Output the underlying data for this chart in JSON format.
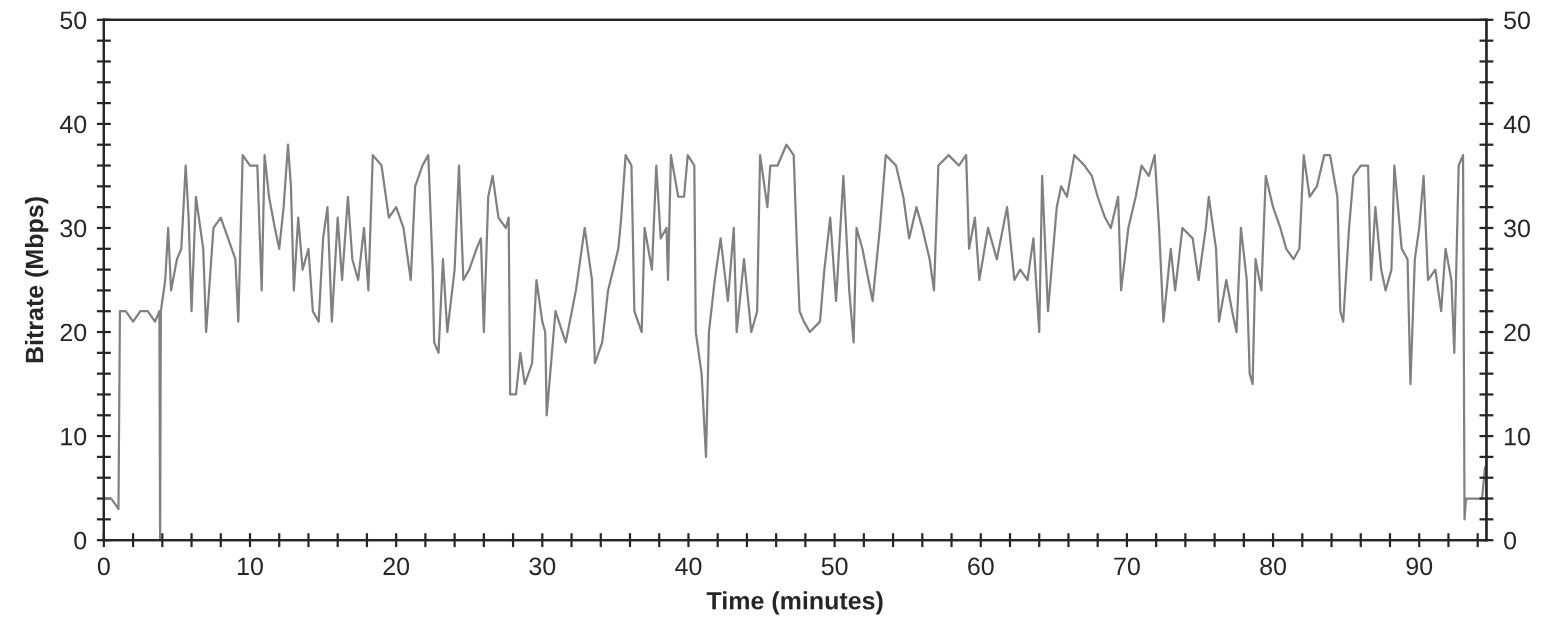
{
  "chart_data": {
    "type": "line",
    "xlabel": "Time (minutes)",
    "ylabel": "Bitrate (Mbps)",
    "series": [
      {
        "color": "#808080",
        "x": [
          0,
          0.5,
          1.0,
          1.1,
          1.5,
          2.0,
          2.5,
          3.0,
          3.5,
          3.8,
          3.85,
          3.9,
          4.2,
          4.4,
          4.6,
          5.0,
          5.3,
          5.6,
          5.8,
          6.0,
          6.3,
          6.8,
          7.0,
          7.5,
          8.0,
          8.5,
          9.0,
          9.2,
          9.5,
          10.0,
          10.5,
          10.8,
          11.0,
          11.3,
          11.7,
          12.0,
          12.3,
          12.6,
          12.8,
          13.0,
          13.3,
          13.6,
          14.0,
          14.3,
          14.7,
          15.0,
          15.3,
          15.6,
          16.0,
          16.3,
          16.7,
          17.0,
          17.4,
          17.8,
          18.1,
          18.4,
          19.0,
          19.5,
          20.0,
          20.5,
          21.0,
          21.3,
          21.8,
          22.2,
          22.5,
          22.6,
          22.9,
          23.2,
          23.5,
          24.0,
          24.3,
          24.6,
          25.0,
          25.5,
          25.8,
          26.0,
          26.3,
          26.6,
          27.0,
          27.5,
          27.7,
          27.8,
          28.2,
          28.5,
          28.8,
          29.3,
          29.6,
          30.0,
          30.2,
          30.3,
          30.9,
          31.6,
          32.3,
          32.9,
          33.4,
          33.6,
          34.1,
          34.5,
          35.2,
          35.4,
          35.7,
          36.1,
          36.3,
          36.8,
          37.0,
          37.5,
          37.8,
          38.1,
          38.5,
          38.6,
          38.8,
          39.3,
          39.7,
          39.95,
          40.4,
          40.5,
          40.9,
          41.2,
          41.4,
          41.8,
          42.2,
          42.7,
          43.1,
          43.3,
          43.8,
          44.3,
          44.7,
          44.9,
          45.4,
          45.6,
          46.1,
          46.7,
          47.2,
          47.4,
          47.6,
          47.9,
          48.3,
          49.0,
          49.3,
          49.7,
          50.1,
          50.6,
          51.0,
          51.3,
          51.5,
          51.9,
          52.6,
          53.1,
          53.5,
          54.2,
          54.7,
          55.1,
          55.6,
          56.0,
          56.5,
          56.8,
          57.1,
          57.8,
          58.5,
          59.0,
          59.2,
          59.6,
          59.9,
          60.5,
          61.1,
          61.8,
          62.3,
          62.7,
          63.2,
          63.6,
          64.0,
          64.2,
          64.6,
          64.9,
          65.2,
          65.5,
          65.9,
          66.4,
          67.1,
          67.6,
          68.0,
          68.5,
          68.9,
          69.4,
          69.6,
          70.1,
          70.6,
          71.0,
          71.5,
          71.9,
          72.2,
          72.5,
          73.0,
          73.3,
          73.8,
          74.5,
          74.9,
          75.4,
          75.6,
          76.1,
          76.3,
          76.8,
          77.2,
          77.5,
          77.8,
          78.2,
          78.4,
          78.6,
          78.8,
          79.2,
          79.5,
          80.0,
          80.5,
          80.9,
          81.4,
          81.8,
          82.1,
          82.5,
          83.0,
          83.5,
          83.9,
          84.4,
          84.6,
          84.8,
          85.2,
          85.5,
          86.0,
          86.5,
          86.7,
          87.0,
          87.4,
          87.7,
          88.1,
          88.3,
          88.8,
          89.2,
          89.4,
          89.7,
          90.0,
          90.3,
          90.6,
          91.1,
          91.5,
          91.8,
          92.2,
          92.4,
          92.7,
          93.0,
          93.1,
          93.2,
          94.3,
          94.5
        ],
        "values": [
          4,
          4,
          3,
          22,
          22,
          21,
          22,
          22,
          21,
          22,
          0,
          22,
          25,
          30,
          24,
          27,
          28,
          36,
          31,
          22,
          33,
          28,
          20,
          30,
          31,
          29,
          27,
          21,
          37,
          36,
          36,
          24,
          37,
          33,
          30,
          28,
          32,
          38,
          34,
          24,
          31,
          26,
          28,
          22,
          21,
          29,
          32,
          21,
          31,
          25,
          33,
          27,
          25,
          30,
          24,
          37,
          36,
          31,
          32,
          30,
          25,
          34,
          36,
          37,
          26,
          19,
          18,
          27,
          20,
          26,
          36,
          25,
          26,
          28,
          29,
          20,
          33,
          35,
          31,
          30,
          31,
          14,
          14,
          18,
          15,
          17,
          25,
          21,
          20,
          12,
          22,
          19,
          24,
          30,
          25,
          17,
          19,
          24,
          28,
          31,
          37,
          36,
          22,
          20,
          30,
          26,
          36,
          29,
          30,
          25,
          37,
          33,
          33,
          37,
          36,
          20,
          16,
          8,
          20,
          25,
          29,
          23,
          30,
          20,
          27,
          20,
          22,
          37,
          32,
          36,
          36,
          38,
          37,
          29,
          22,
          21,
          20,
          21,
          26,
          31,
          23,
          35,
          24,
          19,
          30,
          28,
          23,
          30,
          37,
          36,
          33,
          29,
          32,
          30,
          27,
          24,
          36,
          37,
          36,
          37,
          28,
          31,
          25,
          30,
          27,
          32,
          25,
          26,
          25,
          29,
          20,
          35,
          22,
          27,
          32,
          34,
          33,
          37,
          36,
          35,
          33,
          31,
          30,
          33,
          24,
          30,
          33,
          36,
          35,
          37,
          30,
          21,
          28,
          24,
          30,
          29,
          25,
          30,
          33,
          28,
          21,
          25,
          22,
          20,
          30,
          25,
          16,
          15,
          27,
          24,
          35,
          32,
          30,
          28,
          27,
          28,
          37,
          33,
          34,
          37,
          37,
          33,
          22,
          21,
          30,
          35,
          36,
          36,
          25,
          32,
          26,
          24,
          26,
          36,
          28,
          27,
          15,
          27,
          30,
          35,
          25,
          26,
          22,
          28,
          25,
          18,
          36,
          37,
          2,
          4,
          4,
          7
        ]
      }
    ],
    "xlim": [
      0,
      94.6
    ],
    "ylim": [
      0,
      50
    ],
    "y2lim": [
      0,
      50
    ],
    "xticks": [
      0,
      {
        "value": 2,
        "label": null
      },
      {
        "value": 4,
        "label": null
      },
      {
        "value": 6,
        "label": null
      },
      {
        "value": 8,
        "label": null
      },
      10,
      {
        "value": 12,
        "label": null
      },
      {
        "value": 14,
        "label": null
      },
      {
        "value": 16,
        "label": null
      },
      {
        "value": 18,
        "label": null
      },
      20,
      {
        "value": 22,
        "label": null
      },
      {
        "value": 24,
        "label": null
      },
      {
        "value": 26,
        "label": null
      },
      {
        "value": 28,
        "label": null
      },
      30,
      {
        "value": 32,
        "label": null
      },
      {
        "value": 34,
        "label": null
      },
      {
        "value": 36,
        "label": null
      },
      {
        "value": 38,
        "label": null
      },
      40,
      {
        "value": 42,
        "label": null
      },
      {
        "value": 44,
        "label": null
      },
      {
        "value": 46,
        "label": null
      },
      {
        "value": 48,
        "label": null
      },
      50,
      {
        "value": 52,
        "label": null
      },
      {
        "value": 54,
        "label": null
      },
      {
        "value": 56,
        "label": null
      },
      {
        "value": 58,
        "label": null
      },
      60,
      {
        "value": 62,
        "label": null
      },
      {
        "value": 64,
        "label": null
      },
      {
        "value": 66,
        "label": null
      },
      {
        "value": 68,
        "label": null
      },
      70,
      {
        "value": 72,
        "label": null
      },
      {
        "value": 74,
        "label": null
      },
      {
        "value": 76,
        "label": null
      },
      {
        "value": 78,
        "label": null
      },
      80,
      {
        "value": 82,
        "label": null
      },
      {
        "value": 84,
        "label": null
      },
      {
        "value": 86,
        "label": null
      },
      {
        "value": 88,
        "label": null
      },
      90,
      {
        "value": 92,
        "label": null
      },
      {
        "value": 94,
        "label": null
      }
    ],
    "yticks": [
      0,
      {
        "value": 2,
        "label": null
      },
      {
        "value": 4,
        "label": null
      },
      {
        "value": 6,
        "label": null
      },
      {
        "value": 8,
        "label": null
      },
      10,
      {
        "value": 12,
        "label": null
      },
      {
        "value": 14,
        "label": null
      },
      {
        "value": 16,
        "label": null
      },
      {
        "value": 18,
        "label": null
      },
      20,
      {
        "value": 22,
        "label": null
      },
      {
        "value": 24,
        "label": null
      },
      {
        "value": 26,
        "label": null
      },
      {
        "value": 28,
        "label": null
      },
      30,
      {
        "value": 32,
        "label": null
      },
      {
        "value": 34,
        "label": null
      },
      {
        "value": 36,
        "label": null
      },
      {
        "value": 38,
        "label": null
      },
      40,
      {
        "value": 42,
        "label": null
      },
      {
        "value": 44,
        "label": null
      },
      {
        "value": 46,
        "label": null
      },
      {
        "value": 48,
        "label": null
      },
      50
    ],
    "y2ticks": [
      0,
      {
        "value": 2,
        "label": null
      },
      {
        "value": 4,
        "label": null
      },
      {
        "value": 6,
        "label": null
      },
      {
        "value": 8,
        "label": null
      },
      10,
      {
        "value": 12,
        "label": null
      },
      {
        "value": 14,
        "label": null
      },
      {
        "value": 16,
        "label": null
      },
      {
        "value": 18,
        "label": null
      },
      20,
      {
        "value": 22,
        "label": null
      },
      {
        "value": 24,
        "label": null
      },
      {
        "value": 26,
        "label": null
      },
      {
        "value": 28,
        "label": null
      },
      30,
      {
        "value": 32,
        "label": null
      },
      {
        "value": 34,
        "label": null
      },
      {
        "value": 36,
        "label": null
      },
      {
        "value": 38,
        "label": null
      },
      40,
      {
        "value": 42,
        "label": null
      },
      {
        "value": 44,
        "label": null
      },
      {
        "value": 46,
        "label": null
      },
      {
        "value": 48,
        "label": null
      },
      50
    ],
    "grid": false,
    "marker": "none",
    "line_style": "solid"
  }
}
